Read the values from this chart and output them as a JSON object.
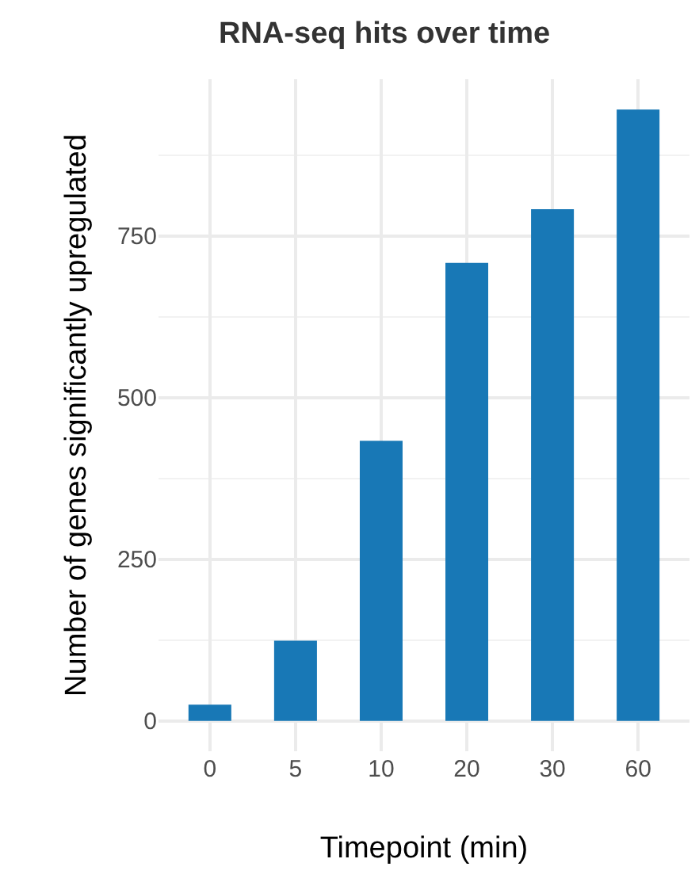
{
  "chart_data": {
    "type": "bar",
    "title": "RNA-seq hits over time",
    "xlabel": "Timepoint (min)",
    "ylabel": "Number of genes significantly upregulated",
    "categories": [
      "0",
      "5",
      "10",
      "20",
      "30",
      "60"
    ],
    "values": [
      25,
      124,
      433,
      708,
      791,
      945
    ],
    "color": "#1878b6",
    "ylim": [
      -47,
      992
    ],
    "yticks": [
      0,
      250,
      500,
      750
    ],
    "grid": true
  }
}
